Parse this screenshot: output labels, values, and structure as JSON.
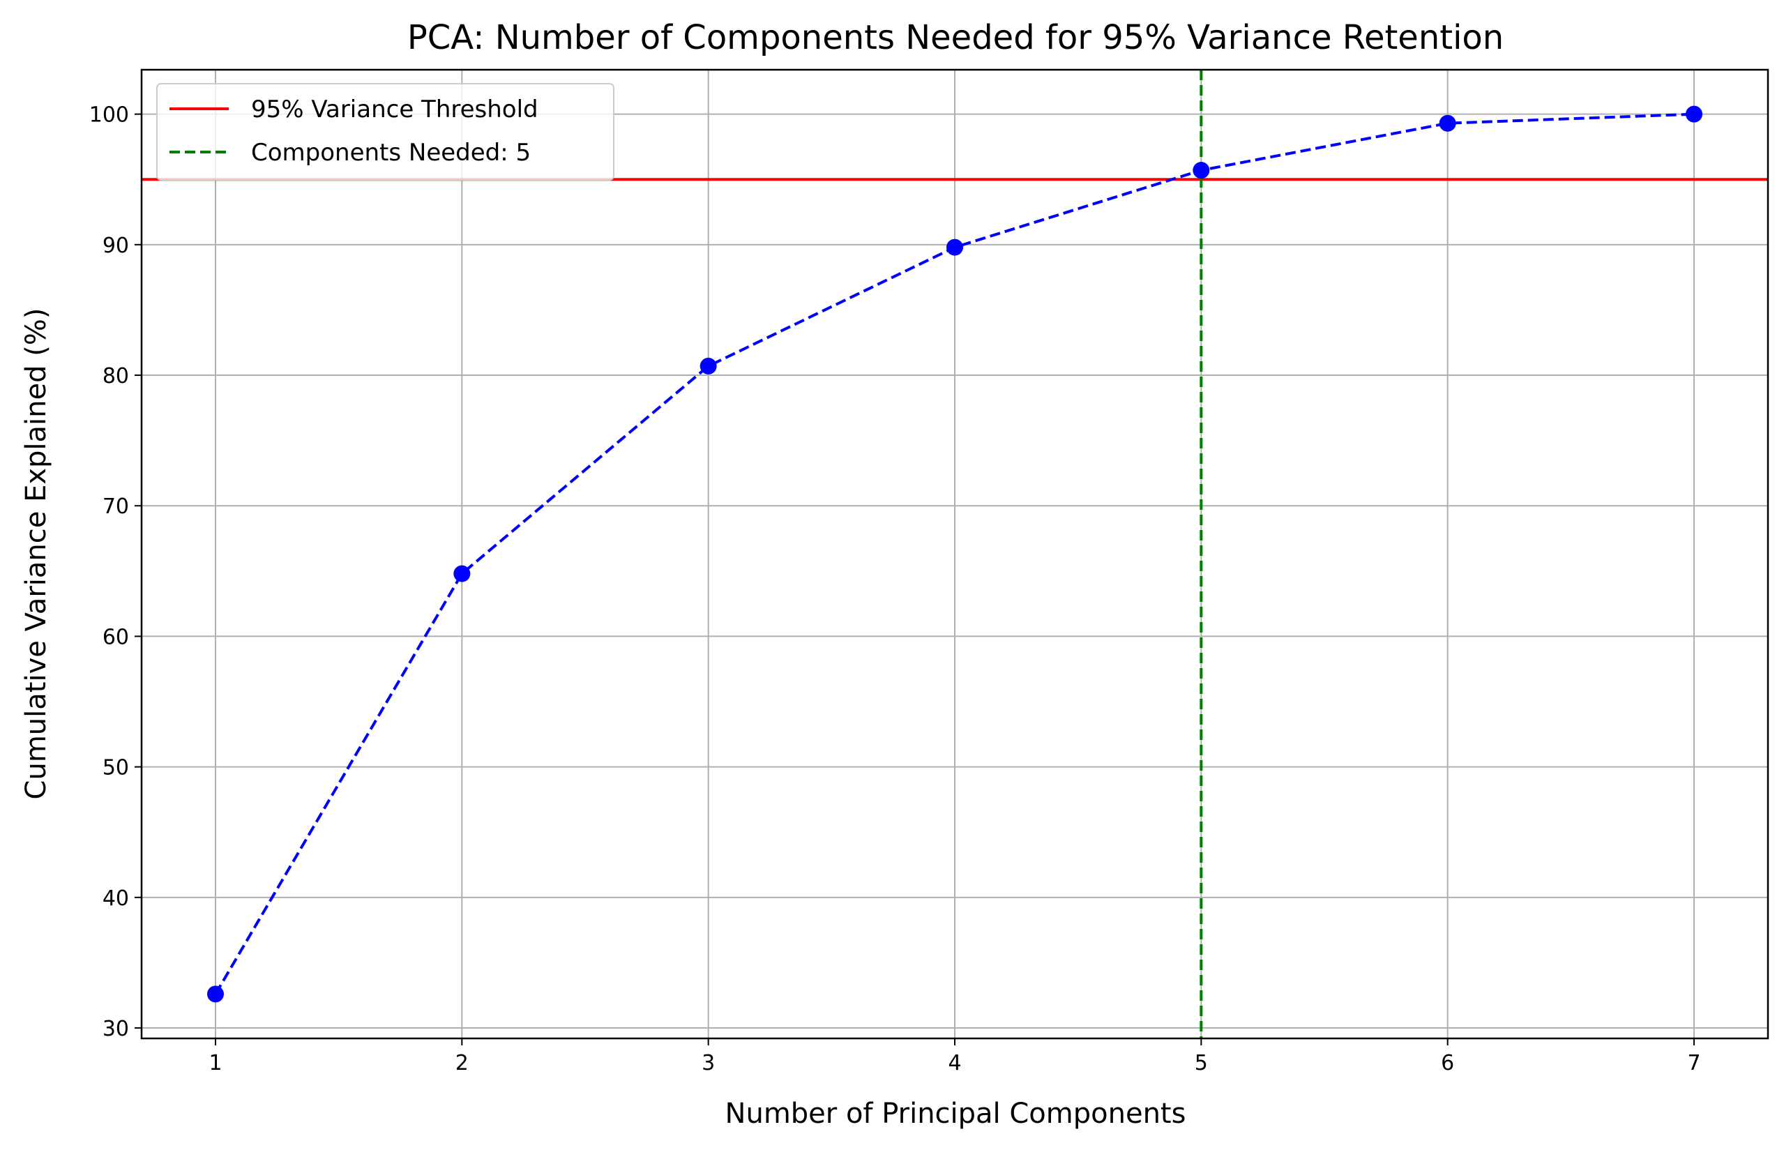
{
  "chart_data": {
    "type": "line",
    "title": "PCA: Number of Components Needed for 95% Variance Retention",
    "xlabel": "Number of Principal Components",
    "ylabel": "Cumulative Variance Explained (%)",
    "x": [
      1,
      2,
      3,
      4,
      5,
      6,
      7
    ],
    "series": [
      {
        "values": [
          32.6,
          64.8,
          80.7,
          89.8,
          95.7,
          99.3,
          100.0
        ],
        "color": "#0000ff",
        "line_style": "dashed",
        "marker": "circle"
      }
    ],
    "reference_lines": [
      {
        "orientation": "horizontal",
        "value": 95,
        "color": "#ff0000",
        "line_style": "solid",
        "label": "95% Variance Threshold"
      },
      {
        "orientation": "vertical",
        "value": 5,
        "color": "#008000",
        "line_style": "dashed",
        "label": "Components Needed: 5"
      }
    ],
    "xlim": [
      0.7,
      7.3
    ],
    "ylim": [
      29.2,
      103.4
    ],
    "xticks": [
      "1",
      "2",
      "3",
      "4",
      "5",
      "6",
      "7"
    ],
    "yticks": [
      "30",
      "40",
      "50",
      "60",
      "70",
      "80",
      "90",
      "100"
    ],
    "grid": true,
    "legend_position": "top-left"
  }
}
